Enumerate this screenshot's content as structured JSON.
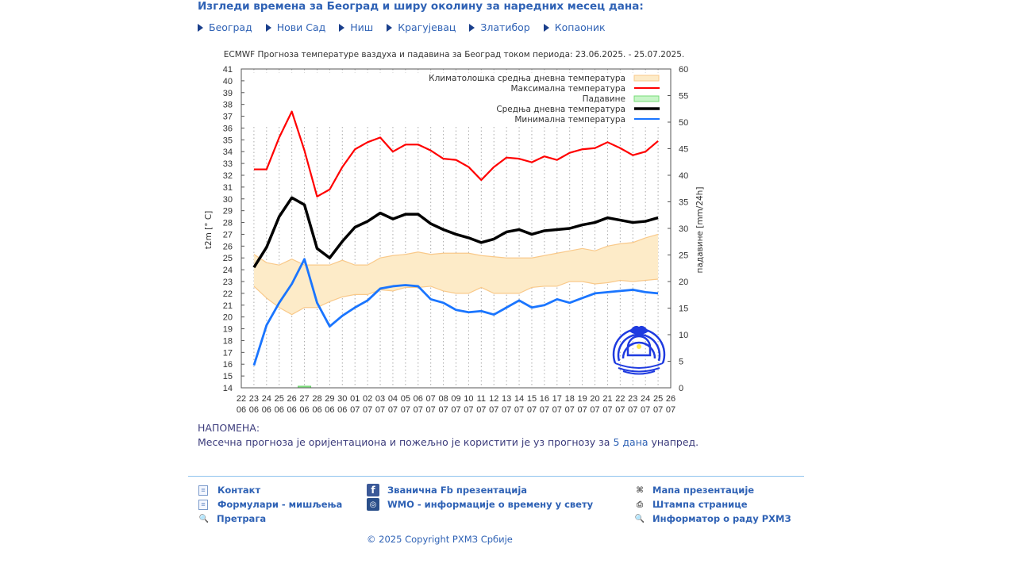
{
  "header": {
    "title": "Изгледи времена за Београд и ширу околину за наредних месец дана:",
    "cities": [
      "Београд",
      "Нови Сад",
      "Ниш",
      "Крагујевац",
      "Златибор",
      "Копаоник"
    ]
  },
  "note": {
    "heading": "НАПОМЕНА:",
    "text_before": "Месечна прогноза је оријентациона и пожељно је користити је уз прогнозу за",
    "link": "5 дана",
    "text_after": "унапред."
  },
  "footer": {
    "col1": [
      "Контакт",
      "Формулари - мишљења",
      "Претрага"
    ],
    "col2": [
      "Званична Fb презентација",
      "WMO - информације о времену у свету"
    ],
    "col3": [
      "Мапа презентације",
      "Штампа странице",
      "Информатор о раду РХМЗ"
    ],
    "copyright": "© 2025 Copyright РХМЗ Србије"
  },
  "chart_data": {
    "type": "line",
    "title": "ECMWF Прогноза температуре ваздуха и падавина за Београд током периода: 23.06.2025. - 25.07.2025.",
    "ylabel": "t2m [° C]",
    "y2label": "падавине [mm/24h]",
    "ylim": [
      14,
      41
    ],
    "y2lim": [
      0,
      60
    ],
    "yticks": [
      14,
      15,
      16,
      17,
      18,
      19,
      20,
      21,
      22,
      23,
      24,
      25,
      26,
      27,
      28,
      29,
      30,
      31,
      32,
      33,
      34,
      35,
      36,
      37,
      38,
      39,
      40,
      41
    ],
    "y2ticks": [
      0,
      5,
      10,
      15,
      20,
      25,
      30,
      35,
      40,
      45,
      50,
      55,
      60
    ],
    "xticks_day": [
      "22",
      "23",
      "24",
      "25",
      "26",
      "27",
      "28",
      "29",
      "30",
      "01",
      "02",
      "03",
      "04",
      "05",
      "06",
      "07",
      "08",
      "09",
      "10",
      "11",
      "12",
      "13",
      "14",
      "15",
      "16",
      "17",
      "18",
      "19",
      "20",
      "21",
      "22",
      "23",
      "24",
      "25",
      "26"
    ],
    "xticks_month": [
      "06",
      "06",
      "06",
      "06",
      "06",
      "06",
      "06",
      "06",
      "06",
      "07",
      "07",
      "07",
      "07",
      "07",
      "07",
      "07",
      "07",
      "07",
      "07",
      "07",
      "07",
      "07",
      "07",
      "07",
      "07",
      "07",
      "07",
      "07",
      "07",
      "07",
      "07",
      "07",
      "07",
      "07",
      "07"
    ],
    "legend_position": "top-right",
    "legend": {
      "clim": "Климатолошка средња дневна температура",
      "max": "Максимална температура",
      "precip": "Падавине",
      "mean": "Средња дневна температура",
      "min": "Минимална температура"
    },
    "colors": {
      "max": "#ff0000",
      "mean": "#000000",
      "min": "#1a75ff",
      "clim_fill": "#fdebc8",
      "clim_line": "#f9c98a",
      "precip": "#90ee90"
    },
    "x": [
      "23.06",
      "24.06",
      "25.06",
      "26.06",
      "27.06",
      "28.06",
      "29.06",
      "30.06",
      "01.07",
      "02.07",
      "03.07",
      "04.07",
      "05.07",
      "06.07",
      "07.07",
      "08.07",
      "09.07",
      "10.07",
      "11.07",
      "12.07",
      "13.07",
      "14.07",
      "15.07",
      "16.07",
      "17.07",
      "18.07",
      "19.07",
      "20.07",
      "21.07",
      "22.07",
      "23.07",
      "24.07",
      "25.07"
    ],
    "series": [
      {
        "name": "max",
        "values": [
          32.5,
          32.5,
          35.2,
          37.4,
          34.1,
          30.2,
          30.8,
          32.7,
          34.2,
          34.8,
          35.2,
          34.0,
          34.6,
          34.6,
          34.1,
          33.4,
          33.3,
          32.7,
          31.6,
          32.7,
          33.5,
          33.4,
          33.1,
          33.6,
          33.3,
          33.9,
          34.2,
          34.3,
          34.8,
          34.3,
          33.7,
          34.0,
          34.9
        ]
      },
      {
        "name": "mean",
        "values": [
          24.2,
          25.9,
          28.5,
          30.1,
          29.5,
          25.8,
          25.0,
          26.4,
          27.6,
          28.1,
          28.8,
          28.3,
          28.7,
          28.7,
          27.9,
          27.4,
          27.0,
          26.7,
          26.3,
          26.6,
          27.2,
          27.4,
          27.0,
          27.3,
          27.4,
          27.5,
          27.8,
          28.0,
          28.4,
          28.2,
          28.0,
          28.1,
          28.4
        ]
      },
      {
        "name": "min",
        "values": [
          15.9,
          19.3,
          21.2,
          22.8,
          24.9,
          21.2,
          19.2,
          20.1,
          20.8,
          21.4,
          22.4,
          22.6,
          22.7,
          22.6,
          21.5,
          21.2,
          20.6,
          20.4,
          20.5,
          20.2,
          20.8,
          21.4,
          20.8,
          21.0,
          21.5,
          21.2,
          21.6,
          22.0,
          22.1,
          22.2,
          22.3,
          22.1,
          22.0
        ]
      },
      {
        "name": "clim_upper",
        "values": [
          25.3,
          24.6,
          24.4,
          24.9,
          24.4,
          24.4,
          24.4,
          24.8,
          24.4,
          24.4,
          25.0,
          25.2,
          25.3,
          25.5,
          25.3,
          25.4,
          25.4,
          25.4,
          25.2,
          25.1,
          25.0,
          25.0,
          25.0,
          25.2,
          25.4,
          25.6,
          25.8,
          25.6,
          26.0,
          26.2,
          26.3,
          26.7,
          27.0
        ]
      },
      {
        "name": "clim_lower",
        "values": [
          22.6,
          21.6,
          20.8,
          20.2,
          20.8,
          20.8,
          21.3,
          21.7,
          21.9,
          21.9,
          22.3,
          22.2,
          22.5,
          22.5,
          22.6,
          22.2,
          22.0,
          22.0,
          22.5,
          22.0,
          22.0,
          22.0,
          22.5,
          22.6,
          22.6,
          23.0,
          23.0,
          22.8,
          22.9,
          23.1,
          23.0,
          23.1,
          23.2
        ]
      },
      {
        "name": "precip",
        "values": [
          0,
          0,
          0,
          0,
          0.2,
          0,
          0,
          0,
          0,
          0,
          0,
          0,
          0,
          0,
          0,
          0,
          0,
          0,
          0,
          0,
          0,
          0,
          0,
          0,
          0,
          0,
          0,
          0,
          0,
          0,
          0,
          0,
          0
        ]
      }
    ]
  }
}
